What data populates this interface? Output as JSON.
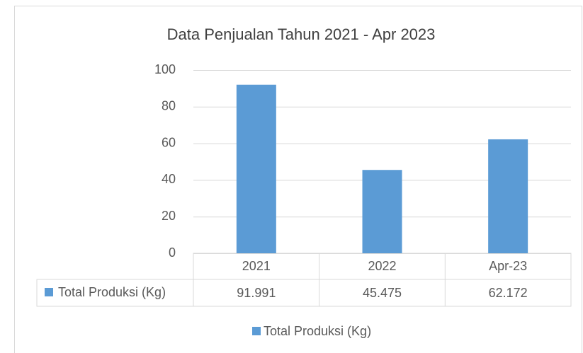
{
  "chart_data": {
    "type": "bar",
    "title": "Data Penjualan Tahun 2021 - Apr 2023",
    "categories": [
      "2021",
      "2022",
      "Apr-23"
    ],
    "series": [
      {
        "name": "Total Produksi (Kg)",
        "color": "#5b9bd5",
        "values": [
          91.991,
          45.475,
          62.172
        ]
      }
    ],
    "ylim": [
      0,
      100
    ],
    "yticks": [
      0,
      20,
      40,
      60,
      80,
      100
    ],
    "grid": true
  }
}
